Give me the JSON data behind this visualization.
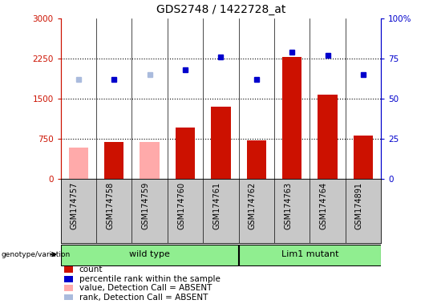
{
  "title": "GDS2748 / 1422728_at",
  "samples": [
    "GSM174757",
    "GSM174758",
    "GSM174759",
    "GSM174760",
    "GSM174761",
    "GSM174762",
    "GSM174763",
    "GSM174764",
    "GSM174891"
  ],
  "counts": [
    580,
    680,
    680,
    950,
    1350,
    720,
    2280,
    1580,
    800
  ],
  "counts_absent": [
    true,
    false,
    true,
    false,
    false,
    false,
    false,
    false,
    false
  ],
  "percentile_ranks": [
    62,
    62,
    65,
    68,
    76,
    62,
    79,
    77,
    65
  ],
  "ranks_absent": [
    true,
    false,
    true,
    false,
    false,
    false,
    false,
    false,
    false
  ],
  "ylim_left": [
    0,
    3000
  ],
  "ylim_right": [
    0,
    100
  ],
  "yticks_left": [
    0,
    750,
    1500,
    2250,
    3000
  ],
  "yticks_right": [
    0,
    25,
    50,
    75,
    100
  ],
  "ytick_labels_left": [
    "0",
    "750",
    "1500",
    "2250",
    "3000"
  ],
  "ytick_labels_right": [
    "0",
    "25",
    "50",
    "75",
    "100%"
  ],
  "groups": [
    {
      "label": "wild type",
      "start": 0,
      "end": 5
    },
    {
      "label": "Lim1 mutant",
      "start": 5,
      "end": 9
    }
  ],
  "bar_color_present": "#CC1100",
  "bar_color_absent": "#FFAAAA",
  "dot_color_present": "#0000CC",
  "dot_color_absent": "#AABBDD",
  "background_color": "#C8C8C8",
  "plot_bg_color": "#FFFFFF",
  "left_axis_color": "#CC1100",
  "right_axis_color": "#0000CC",
  "group_fill": "#90EE90",
  "legend_items": [
    {
      "label": "count",
      "color": "#CC1100"
    },
    {
      "label": "percentile rank within the sample",
      "color": "#0000CC"
    },
    {
      "label": "value, Detection Call = ABSENT",
      "color": "#FFAAAA"
    },
    {
      "label": "rank, Detection Call = ABSENT",
      "color": "#AABBDD"
    }
  ]
}
